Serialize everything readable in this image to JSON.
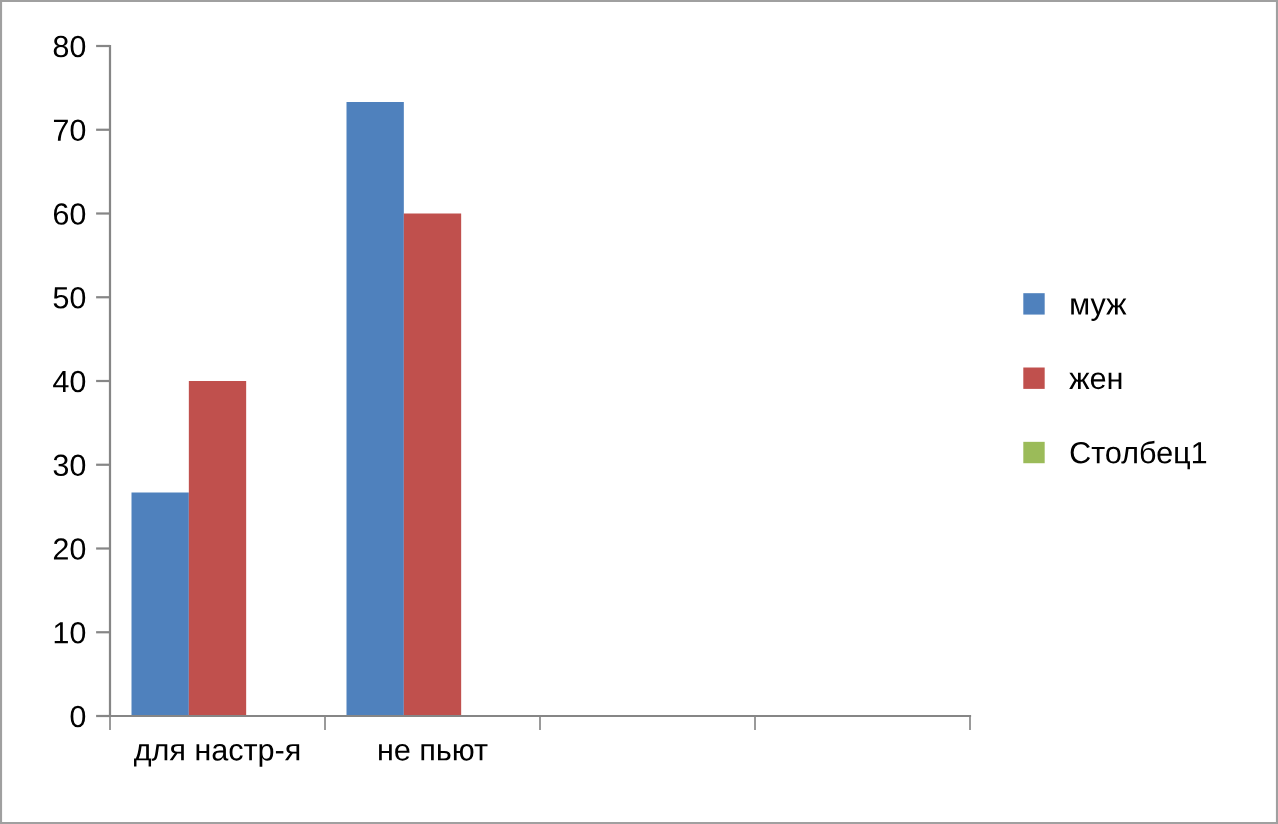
{
  "chart_data": {
    "type": "bar",
    "categories": [
      "для настр-я",
      "не пьют",
      null,
      null
    ],
    "series": [
      {
        "name": "муж",
        "color": "#4f81bd",
        "values": [
          26.7,
          73.3,
          null,
          null
        ]
      },
      {
        "name": "жен",
        "color": "#c0504d",
        "values": [
          40,
          60,
          null,
          null
        ]
      },
      {
        "name": "Столбец1",
        "color": "#9bbb59",
        "values": [
          null,
          null,
          null,
          null
        ]
      }
    ],
    "ylim": [
      0,
      80
    ],
    "yticks": [
      0,
      10,
      20,
      30,
      40,
      50,
      60,
      70,
      80
    ],
    "grid": false,
    "legend": "right"
  }
}
